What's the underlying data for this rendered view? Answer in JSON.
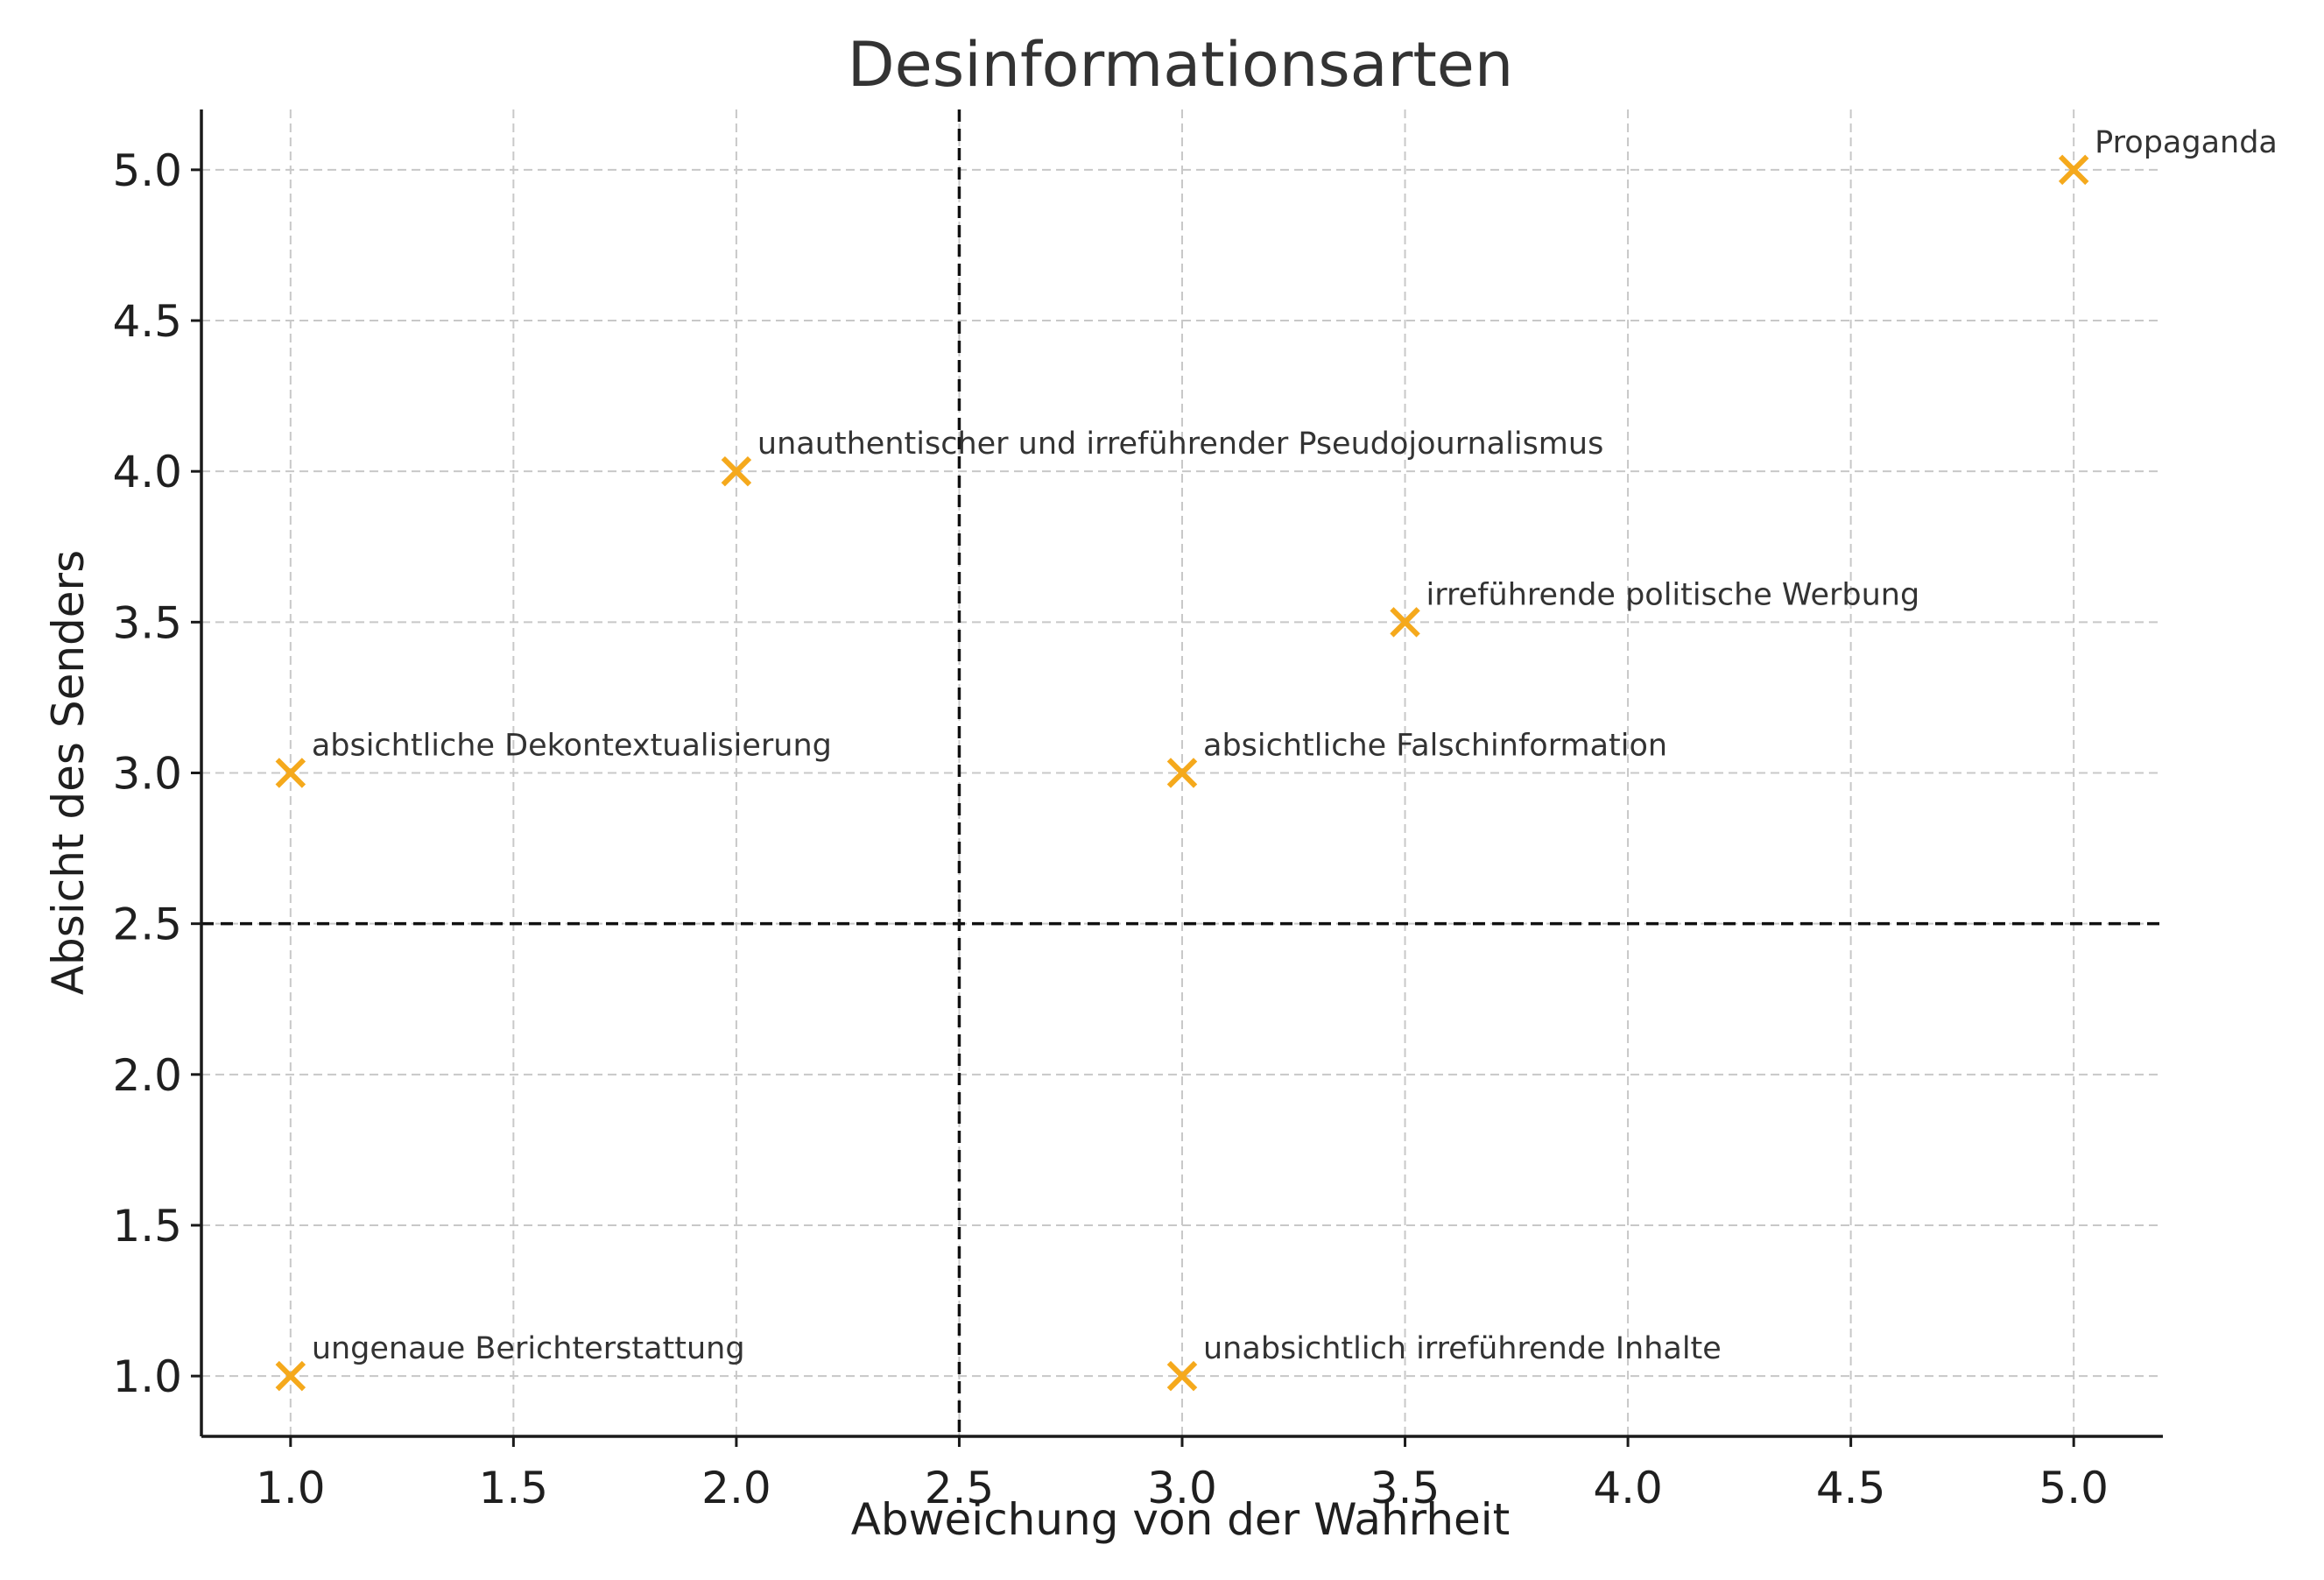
{
  "chart_data": {
    "type": "scatter",
    "title": "Desinformationsarten",
    "xlabel": "Abweichung von der Wahrheit",
    "ylabel": "Absicht des Senders",
    "xlim": [
      0.8,
      5.2
    ],
    "ylim": [
      0.8,
      5.2
    ],
    "x_ticks": [
      1.0,
      1.5,
      2.0,
      2.5,
      3.0,
      3.5,
      4.0,
      4.5,
      5.0
    ],
    "y_ticks": [
      1.0,
      1.5,
      2.0,
      2.5,
      3.0,
      3.5,
      4.0,
      4.5,
      5.0
    ],
    "x_tick_labels": [
      "1.0",
      "1.5",
      "2.0",
      "2.5",
      "3.0",
      "3.5",
      "4.0",
      "4.5",
      "5.0"
    ],
    "y_tick_labels": [
      "1.0",
      "1.5",
      "2.0",
      "2.5",
      "3.0",
      "3.5",
      "4.0",
      "4.5",
      "5.0"
    ],
    "grid": true,
    "reference_lines": {
      "vertical_x": 2.5,
      "horizontal_y": 2.5
    },
    "marker": "x",
    "marker_color": "#f5a91c",
    "points": [
      {
        "label": "ungenaue Berichterstattung",
        "x": 1.0,
        "y": 1.0
      },
      {
        "label": "absichtliche Dekontextualisierung",
        "x": 1.0,
        "y": 3.0
      },
      {
        "label": "unauthentischer und irreführender Pseudojournalismus",
        "x": 2.0,
        "y": 4.0
      },
      {
        "label": "unabsichtlich irreführende Inhalte",
        "x": 3.0,
        "y": 1.0
      },
      {
        "label": "absichtliche Falschinformation",
        "x": 3.0,
        "y": 3.0
      },
      {
        "label": "irreführende politische Werbung",
        "x": 3.5,
        "y": 3.5
      },
      {
        "label": "Propaganda",
        "x": 5.0,
        "y": 5.0
      }
    ]
  }
}
